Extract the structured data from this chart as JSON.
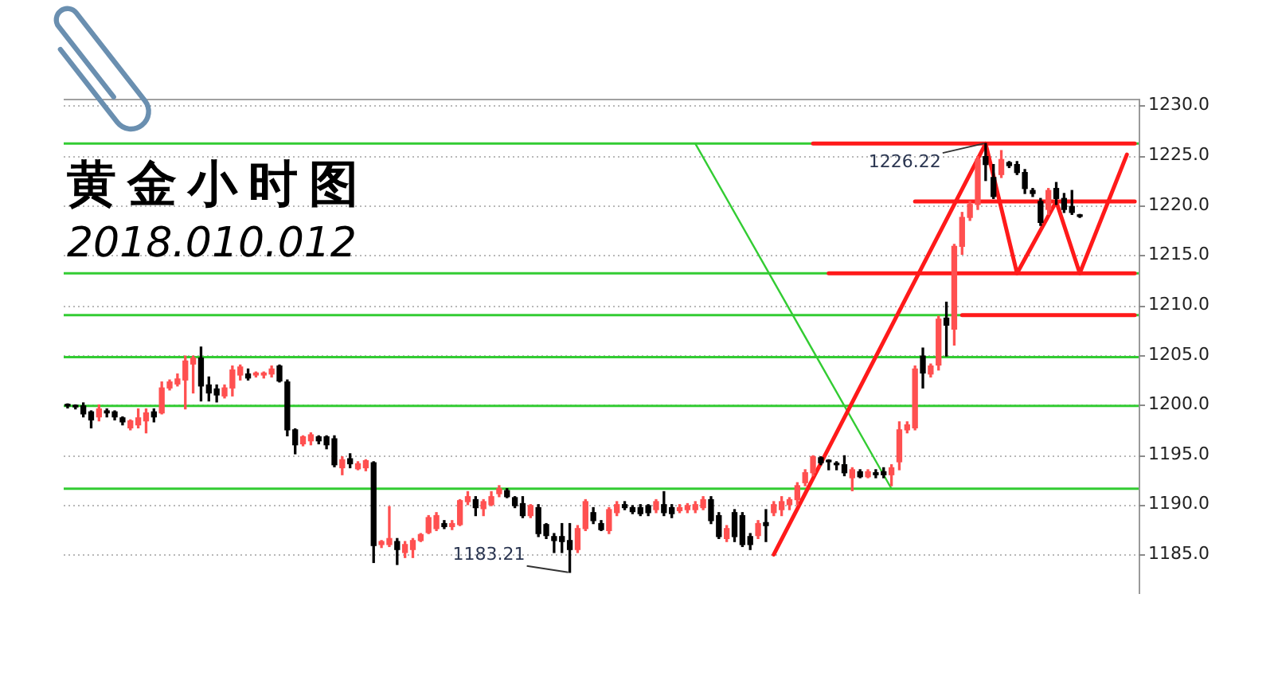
{
  "chart_data": {
    "type": "candlestick",
    "title": "黄金小时图",
    "subtitle": "2018.010.012",
    "categories": [
      null,
      null,
      null,
      null,
      null,
      null,
      null,
      null,
      null,
      null,
      null,
      null,
      null,
      null,
      null,
      null,
      null,
      null,
      null,
      null,
      null,
      null,
      null,
      null,
      null,
      null,
      null,
      null,
      null,
      null,
      null,
      null,
      null,
      null,
      null,
      null,
      null,
      null,
      null,
      null,
      null,
      null,
      null,
      null,
      null,
      null,
      null,
      null,
      null,
      null,
      null,
      null,
      null,
      null,
      null,
      null,
      null,
      null,
      null,
      null,
      null,
      null,
      null,
      null,
      null,
      null,
      null,
      null,
      null,
      null,
      null,
      null,
      null,
      null,
      null,
      null,
      null,
      null,
      null,
      null,
      null,
      null,
      null,
      null,
      null,
      null,
      null,
      null,
      null,
      null,
      null,
      null,
      null,
      null,
      null,
      null,
      null,
      null,
      null,
      null,
      null,
      null,
      null,
      null,
      null,
      null,
      null,
      null,
      null,
      null,
      null,
      null,
      null,
      null,
      null,
      null,
      null,
      null,
      null,
      null,
      null,
      null,
      null,
      null,
      null,
      null,
      null,
      null,
      null,
      null,
      null,
      null,
      null,
      null,
      null,
      null,
      null
    ],
    "ohlc": [
      [
        1200.0,
        1200.1,
        1199.7,
        1199.9
      ],
      [
        1199.9,
        1200.0,
        1199.6,
        1199.8
      ],
      [
        1199.9,
        1200.2,
        1198.8,
        1199.1
      ],
      [
        1199.3,
        1199.4,
        1197.7,
        1198.5
      ],
      [
        1198.8,
        1200.0,
        1198.4,
        1199.6
      ],
      [
        1199.4,
        1199.6,
        1198.8,
        1199.2
      ],
      [
        1199.3,
        1199.4,
        1198.5,
        1198.8
      ],
      [
        1198.7,
        1198.8,
        1198.0,
        1198.3
      ],
      [
        1197.7,
        1198.5,
        1197.5,
        1198.4
      ],
      [
        1198.0,
        1199.6,
        1197.7,
        1198.7
      ],
      [
        1198.4,
        1199.6,
        1197.2,
        1199.2
      ],
      [
        1199.3,
        1199.6,
        1198.3,
        1198.8
      ],
      [
        1199.2,
        1202.3,
        1199.1,
        1201.7
      ],
      [
        1201.7,
        1202.5,
        1201.5,
        1202.3
      ],
      [
        1202.1,
        1203.1,
        1201.9,
        1202.6
      ],
      [
        1202.5,
        1204.9,
        1199.6,
        1204.4
      ],
      [
        1204.1,
        1204.9,
        1201.2,
        1204.7
      ],
      [
        1204.7,
        1205.8,
        1200.4,
        1201.9
      ],
      [
        1202.0,
        1202.8,
        1200.4,
        1201.2
      ],
      [
        1201.6,
        1202.0,
        1200.3,
        1201.0
      ],
      [
        1200.9,
        1202.0,
        1200.7,
        1201.7
      ],
      [
        1201.7,
        1203.9,
        1200.9,
        1203.5
      ],
      [
        1203.0,
        1204.0,
        1202.5,
        1203.8
      ],
      [
        1203.1,
        1203.6,
        1202.5,
        1202.7
      ],
      [
        1203.0,
        1203.3,
        1202.8,
        1203.2
      ],
      [
        1203.0,
        1203.3,
        1202.7,
        1203.2
      ],
      [
        1203.1,
        1203.9,
        1202.8,
        1203.6
      ],
      [
        1203.9,
        1204.0,
        1202.3,
        1202.4
      ],
      [
        1202.3,
        1202.5,
        1196.9,
        1197.5
      ],
      [
        1197.5,
        1197.6,
        1195.1,
        1196.0
      ],
      [
        1196.1,
        1196.9,
        1195.9,
        1196.8
      ],
      [
        1196.4,
        1197.2,
        1196.0,
        1197.0
      ],
      [
        1196.8,
        1196.9,
        1196.1,
        1196.4
      ],
      [
        1196.8,
        1196.9,
        1195.6,
        1196.0
      ],
      [
        1196.6,
        1196.9,
        1193.8,
        1194.0
      ],
      [
        1193.7,
        1194.8,
        1193.0,
        1194.5
      ],
      [
        1194.6,
        1195.1,
        1193.7,
        1194.1
      ],
      [
        1193.6,
        1194.3,
        1193.5,
        1194.1
      ],
      [
        1193.7,
        1194.5,
        1193.4,
        1194.4
      ],
      [
        1194.2,
        1194.3,
        1184.2,
        1185.9
      ],
      [
        1186.0,
        1186.4,
        1185.7,
        1186.3
      ],
      [
        1186.0,
        1189.8,
        1185.8,
        1186.6
      ],
      [
        1186.3,
        1186.6,
        1184.0,
        1185.5
      ],
      [
        1185.2,
        1186.3,
        1184.7,
        1186.0
      ],
      [
        1185.5,
        1186.6,
        1184.7,
        1186.4
      ],
      [
        1186.4,
        1187.1,
        1186.3,
        1187.0
      ],
      [
        1187.2,
        1188.9,
        1187.1,
        1188.7
      ],
      [
        1187.6,
        1189.2,
        1187.4,
        1188.9
      ],
      [
        1188.1,
        1188.4,
        1187.6,
        1187.8
      ],
      [
        1187.8,
        1188.4,
        1187.5,
        1188.1
      ],
      [
        1188.0,
        1190.5,
        1187.9,
        1190.4
      ],
      [
        1190.3,
        1191.3,
        1190.0,
        1190.8
      ],
      [
        1190.5,
        1190.8,
        1188.9,
        1189.7
      ],
      [
        1189.6,
        1190.5,
        1188.9,
        1190.3
      ],
      [
        1190.0,
        1191.3,
        1189.9,
        1190.8
      ],
      [
        1191.1,
        1191.9,
        1190.8,
        1191.6
      ],
      [
        1191.4,
        1191.6,
        1190.7,
        1190.8
      ],
      [
        1190.7,
        1190.8,
        1189.7,
        1189.9
      ],
      [
        1190.1,
        1190.8,
        1188.7,
        1188.9
      ],
      [
        1188.9,
        1190.0,
        1188.7,
        1189.9
      ],
      [
        1189.7,
        1190.0,
        1186.8,
        1187.1
      ],
      [
        1188.0,
        1188.1,
        1186.6,
        1186.9
      ],
      [
        1186.8,
        1187.1,
        1185.2,
        1186.4
      ],
      [
        1186.8,
        1188.1,
        1185.2,
        1186.3
      ],
      [
        1186.4,
        1188.1,
        1183.21,
        1185.5
      ],
      [
        1185.5,
        1187.9,
        1185.2,
        1187.6
      ],
      [
        1187.6,
        1190.5,
        1187.4,
        1190.3
      ],
      [
        1189.2,
        1189.7,
        1188.1,
        1188.4
      ],
      [
        1188.1,
        1188.4,
        1187.4,
        1187.5
      ],
      [
        1187.4,
        1189.7,
        1187.1,
        1189.5
      ],
      [
        1189.2,
        1190.3,
        1188.9,
        1190.0
      ],
      [
        1190.0,
        1190.3,
        1189.5,
        1189.7
      ],
      [
        1189.7,
        1189.9,
        1189.1,
        1189.3
      ],
      [
        1189.7,
        1190.0,
        1188.9,
        1189.1
      ],
      [
        1189.9,
        1190.0,
        1188.9,
        1189.2
      ],
      [
        1189.5,
        1190.5,
        1189.2,
        1190.3
      ],
      [
        1190.0,
        1191.3,
        1188.9,
        1189.2
      ],
      [
        1189.7,
        1190.0,
        1188.7,
        1189.1
      ],
      [
        1189.4,
        1190.0,
        1189.2,
        1189.7
      ],
      [
        1189.5,
        1190.1,
        1189.2,
        1189.9
      ],
      [
        1189.5,
        1190.3,
        1189.2,
        1190.0
      ],
      [
        1189.7,
        1190.8,
        1189.5,
        1190.5
      ],
      [
        1190.5,
        1190.8,
        1188.1,
        1188.4
      ],
      [
        1188.9,
        1189.2,
        1186.6,
        1186.8
      ],
      [
        1186.6,
        1187.9,
        1186.3,
        1187.6
      ],
      [
        1189.2,
        1189.5,
        1186.3,
        1186.8
      ],
      [
        1188.9,
        1189.2,
        1185.8,
        1186.0
      ],
      [
        1186.8,
        1187.1,
        1185.5,
        1186.0
      ],
      [
        1186.9,
        1188.4,
        1186.6,
        1188.1
      ],
      [
        1188.2,
        1189.5,
        1186.3,
        1187.9
      ],
      [
        1189.2,
        1190.3,
        1188.9,
        1190.0
      ],
      [
        1189.5,
        1190.8,
        1188.9,
        1190.3
      ],
      [
        1190.0,
        1190.7,
        1189.5,
        1190.5
      ],
      [
        1190.5,
        1192.2,
        1190.0,
        1191.9
      ],
      [
        1192.2,
        1193.5,
        1191.9,
        1193.2
      ],
      [
        1193.2,
        1194.9,
        1192.9,
        1194.8
      ],
      [
        1194.7,
        1194.8,
        1194.0,
        1194.2
      ],
      [
        1194.4,
        1194.5,
        1193.5,
        1194.3
      ],
      [
        1194.1,
        1194.3,
        1193.5,
        1194.0
      ],
      [
        1194.0,
        1194.9,
        1192.9,
        1193.2
      ],
      [
        1192.7,
        1193.7,
        1191.4,
        1193.5
      ],
      [
        1193.3,
        1193.5,
        1192.7,
        1192.8
      ],
      [
        1192.8,
        1193.5,
        1192.7,
        1193.3
      ],
      [
        1193.2,
        1193.5,
        1192.7,
        1193.0
      ],
      [
        1193.3,
        1193.7,
        1192.7,
        1193.0
      ],
      [
        1193.0,
        1194.0,
        1191.9,
        1193.7
      ],
      [
        1194.3,
        1198.3,
        1193.5,
        1197.5
      ],
      [
        1197.5,
        1198.3,
        1197.2,
        1198.0
      ],
      [
        1197.7,
        1203.9,
        1197.5,
        1203.6
      ],
      [
        1204.9,
        1205.7,
        1201.7,
        1203.2
      ],
      [
        1203.1,
        1204.1,
        1202.8,
        1203.9
      ],
      [
        1204.0,
        1208.9,
        1203.5,
        1208.6
      ],
      [
        1208.7,
        1210.3,
        1204.9,
        1208.0
      ],
      [
        1207.6,
        1216.1,
        1206.0,
        1215.9
      ],
      [
        1215.9,
        1219.3,
        1215.1,
        1218.8
      ],
      [
        1218.8,
        1220.4,
        1218.5,
        1220.1
      ],
      [
        1220.1,
        1224.9,
        1219.6,
        1224.6
      ],
      [
        1224.9,
        1226.22,
        1222.5,
        1224.1
      ],
      [
        1222.8,
        1224.1,
        1220.7,
        1220.9
      ],
      [
        1223.1,
        1225.5,
        1222.8,
        1224.6
      ],
      [
        1224.3,
        1224.4,
        1223.8,
        1224.0
      ],
      [
        1224.1,
        1224.4,
        1223.1,
        1223.3
      ],
      [
        1223.3,
        1223.6,
        1221.2,
        1221.7
      ],
      [
        1221.5,
        1221.7,
        1220.9,
        1221.2
      ],
      [
        1220.4,
        1220.7,
        1218.0,
        1218.3
      ],
      [
        1219.6,
        1221.7,
        1219.1,
        1221.5
      ],
      [
        1221.7,
        1222.3,
        1220.1,
        1220.7
      ],
      [
        1220.7,
        1221.2,
        1219.3,
        1219.6
      ],
      [
        1219.9,
        1221.5,
        1219.1,
        1219.3
      ],
      [
        1219.0,
        1219.1,
        1218.8,
        1218.9
      ],
      null,
      null,
      null,
      null,
      null,
      null,
      null
    ],
    "colors": [
      "#000000",
      "#000000",
      "#000000",
      "#000000",
      "#ff5050",
      "#000000",
      "#000000",
      "#000000",
      "#ff5050",
      "#ff5050",
      "#ff5050",
      "#000000",
      "#ff5050",
      "#ff5050",
      "#ff5050",
      "#ff5050",
      "#ff5050",
      "#000000",
      "#000000",
      "#000000",
      "#ff5050",
      "#ff5050",
      "#ff5050",
      "#000000",
      "#ff5050",
      "#ff5050",
      "#ff5050",
      "#000000",
      "#000000",
      "#000000",
      "#ff5050",
      "#ff5050",
      "#000000",
      "#000000",
      "#000000",
      "#ff5050",
      "#000000",
      "#ff5050",
      "#ff5050",
      "#000000",
      "#ff5050",
      "#ff5050",
      "#000000",
      "#ff5050",
      "#ff5050",
      "#ff5050",
      "#ff5050",
      "#ff5050",
      "#000000",
      "#ff5050",
      "#ff5050",
      "#ff5050",
      "#000000",
      "#ff5050",
      "#ff5050",
      "#ff5050",
      "#000000",
      "#000000",
      "#000000",
      "#ff5050",
      "#000000",
      "#000000",
      "#000000",
      "#000000",
      "#000000",
      "#ff5050",
      "#ff5050",
      "#000000",
      "#000000",
      "#ff5050",
      "#ff5050",
      "#000000",
      "#000000",
      "#000000",
      "#000000",
      "#ff5050",
      "#000000",
      "#000000",
      "#ff5050",
      "#ff5050",
      "#ff5050",
      "#ff5050",
      "#000000",
      "#000000",
      "#ff5050",
      "#000000",
      "#000000",
      "#000000",
      "#ff5050",
      "#000000",
      "#ff5050",
      "#ff5050",
      "#ff5050",
      "#ff5050",
      "#ff5050",
      "#ff5050",
      "#000000",
      "#000000",
      "#000000",
      "#000000",
      "#ff5050",
      "#000000",
      "#ff5050",
      "#000000",
      "#000000",
      "#ff5050",
      "#ff5050",
      "#ff5050",
      "#ff5050",
      "#000000",
      "#ff5050",
      "#ff5050",
      "#000000",
      "#ff5050",
      "#ff5050",
      "#ff5050",
      "#ff5050",
      "#000000",
      "#000000",
      "#ff5050",
      "#000000",
      "#000000",
      "#000000",
      "#000000",
      "#000000",
      "#ff5050",
      "#000000",
      "#000000",
      "#000000",
      "#000000",
      null,
      null,
      null,
      null,
      null,
      null,
      null
    ],
    "series": [
      {
        "type": "line",
        "color": "#ff1a1a",
        "values": [
          null,
          null,
          null,
          null,
          null,
          null,
          null,
          null,
          null,
          null,
          null,
          null,
          null,
          null,
          null,
          null,
          null,
          null,
          null,
          null,
          null,
          null,
          null,
          null,
          null,
          null,
          null,
          null,
          null,
          null,
          null,
          null,
          null,
          null,
          null,
          null,
          null,
          null,
          null,
          null,
          null,
          null,
          null,
          null,
          null,
          null,
          null,
          null,
          null,
          null,
          null,
          null,
          null,
          null,
          null,
          null,
          null,
          null,
          null,
          null,
          null,
          null,
          null,
          null,
          null,
          null,
          null,
          null,
          null,
          null,
          null,
          null,
          null,
          null,
          null,
          null,
          null,
          null,
          null,
          null,
          null,
          null,
          null,
          null,
          null,
          null,
          null,
          null,
          null,
          null,
          1185.0,
          null,
          null,
          null,
          null,
          null,
          null,
          null,
          null,
          null,
          null,
          null,
          null,
          null,
          null,
          null,
          null,
          null,
          null,
          null,
          null,
          null,
          null,
          null,
          null,
          null,
          null,
          1226.2,
          null,
          null,
          null,
          1213.2,
          null,
          null,
          null,
          null,
          1220.4,
          null,
          null,
          1213.2,
          null,
          null,
          null,
          null,
          null,
          1225.1,
          null
        ]
      },
      {
        "type": "line",
        "color": "#ff1a1a",
        "values": [
          null,
          null,
          null,
          null,
          null,
          null,
          null,
          null,
          null,
          null,
          null,
          null,
          null,
          null,
          null,
          null,
          null,
          null,
          null,
          null,
          null,
          null,
          null,
          null,
          null,
          null,
          null,
          null,
          null,
          null,
          null,
          null,
          null,
          null,
          null,
          null,
          null,
          null,
          null,
          null,
          null,
          null,
          null,
          null,
          null,
          null,
          null,
          null,
          null,
          null,
          null,
          null,
          null,
          null,
          null,
          null,
          null,
          null,
          null,
          null,
          null,
          null,
          null,
          null,
          null,
          null,
          null,
          null,
          null,
          null,
          null,
          null,
          null,
          null,
          null,
          null,
          null,
          null,
          null,
          null,
          null,
          null,
          null,
          null,
          null,
          null,
          null,
          null,
          null,
          null,
          null,
          null,
          null,
          null,
          null,
          1226.2,
          null,
          null,
          null,
          null,
          null,
          null,
          null,
          null,
          null,
          null,
          null,
          null,
          null,
          null,
          null,
          null,
          null,
          null,
          null,
          null,
          null,
          null,
          null,
          null,
          null,
          null,
          null,
          null,
          null,
          null,
          null,
          null,
          null,
          null,
          null,
          null,
          null,
          null,
          null,
          null,
          1226.2
        ]
      },
      {
        "type": "line",
        "color": "#ff1a1a",
        "values": [
          null,
          null,
          null,
          null,
          null,
          null,
          null,
          null,
          null,
          null,
          null,
          null,
          null,
          null,
          null,
          null,
          null,
          null,
          null,
          null,
          null,
          null,
          null,
          null,
          null,
          null,
          null,
          null,
          null,
          null,
          null,
          null,
          null,
          null,
          null,
          null,
          null,
          null,
          null,
          null,
          null,
          null,
          null,
          null,
          null,
          null,
          null,
          null,
          null,
          null,
          null,
          null,
          null,
          null,
          null,
          null,
          null,
          null,
          null,
          null,
          null,
          null,
          null,
          null,
          null,
          null,
          null,
          null,
          null,
          null,
          null,
          null,
          null,
          null,
          null,
          null,
          null,
          null,
          null,
          null,
          null,
          null,
          null,
          null,
          null,
          null,
          null,
          null,
          null,
          null,
          null,
          null,
          null,
          null,
          null,
          null,
          null,
          null,
          null,
          null,
          null,
          null,
          null,
          null,
          null,
          null,
          null,
          null,
          1220.4,
          null,
          null,
          null,
          null,
          null,
          null,
          null,
          null,
          null,
          null,
          null,
          null,
          null,
          null,
          null,
          null,
          null,
          null,
          null,
          null,
          null,
          null,
          null,
          null,
          null,
          null,
          null,
          1220.4
        ]
      },
      {
        "type": "line",
        "color": "#ff1a1a",
        "values": [
          null,
          null,
          null,
          null,
          null,
          null,
          null,
          null,
          null,
          null,
          null,
          null,
          null,
          null,
          null,
          null,
          null,
          null,
          null,
          null,
          null,
          null,
          null,
          null,
          null,
          null,
          null,
          null,
          null,
          null,
          null,
          null,
          null,
          null,
          null,
          null,
          null,
          null,
          null,
          null,
          null,
          null,
          null,
          null,
          null,
          null,
          null,
          null,
          null,
          null,
          null,
          null,
          null,
          null,
          null,
          null,
          null,
          null,
          null,
          null,
          null,
          null,
          null,
          null,
          null,
          null,
          null,
          null,
          null,
          null,
          null,
          null,
          null,
          null,
          null,
          null,
          null,
          null,
          null,
          null,
          null,
          null,
          null,
          null,
          null,
          null,
          null,
          null,
          null,
          null,
          null,
          null,
          null,
          null,
          null,
          null,
          null,
          1213.2,
          null,
          null,
          null,
          null,
          null,
          null,
          null,
          null,
          null,
          null,
          null,
          null,
          null,
          null,
          null,
          null,
          null,
          null,
          null,
          null,
          null,
          null,
          null,
          null,
          null,
          null,
          null,
          null,
          null,
          null,
          null,
          null,
          null,
          null,
          null,
          null,
          null,
          null,
          1213.2
        ]
      },
      {
        "type": "line",
        "color": "#ff1a1a",
        "values": [
          null,
          null,
          null,
          null,
          null,
          null,
          null,
          null,
          null,
          null,
          null,
          null,
          null,
          null,
          null,
          null,
          null,
          null,
          null,
          null,
          null,
          null,
          null,
          null,
          null,
          null,
          null,
          null,
          null,
          null,
          null,
          null,
          null,
          null,
          null,
          null,
          null,
          null,
          null,
          null,
          null,
          null,
          null,
          null,
          null,
          null,
          null,
          null,
          null,
          null,
          null,
          null,
          null,
          null,
          null,
          null,
          null,
          null,
          null,
          null,
          null,
          null,
          null,
          null,
          null,
          null,
          null,
          null,
          null,
          null,
          null,
          null,
          null,
          null,
          null,
          null,
          null,
          null,
          null,
          null,
          null,
          null,
          null,
          null,
          null,
          null,
          null,
          null,
          null,
          null,
          null,
          null,
          null,
          null,
          null,
          null,
          null,
          null,
          null,
          null,
          null,
          null,
          null,
          null,
          null,
          null,
          null,
          null,
          null,
          null,
          null,
          null,
          null,
          null,
          1209.0,
          null,
          null,
          null,
          null,
          null,
          null,
          null,
          null,
          null,
          null,
          null,
          null,
          null,
          null,
          null,
          null,
          null,
          null,
          null,
          null,
          null,
          1209.0
        ]
      },
      {
        "type": "line",
        "color": "#33cc33",
        "values": [
          null,
          null,
          null,
          null,
          null,
          null,
          null,
          null,
          null,
          null,
          null,
          null,
          null,
          null,
          null,
          null,
          null,
          null,
          null,
          null,
          null,
          null,
          null,
          null,
          null,
          null,
          null,
          null,
          null,
          null,
          null,
          null,
          null,
          null,
          null,
          null,
          null,
          null,
          null,
          null,
          null,
          null,
          null,
          null,
          null,
          null,
          null,
          null,
          null,
          null,
          null,
          null,
          null,
          null,
          null,
          null,
          null,
          null,
          null,
          null,
          null,
          null,
          null,
          null,
          null,
          null,
          null,
          null,
          null,
          null,
          null,
          null,
          null,
          null,
          null,
          null,
          null,
          null,
          null,
          null,
          1226.2,
          null,
          null,
          null,
          null,
          null,
          null,
          null,
          null,
          null,
          null,
          null,
          null,
          null,
          null,
          null,
          null,
          null,
          null,
          null,
          null,
          null,
          null,
          null,
          null,
          1191.6,
          null,
          null,
          null,
          null,
          null,
          null,
          null,
          null,
          null,
          null,
          null,
          null,
          null,
          null,
          null,
          null,
          null,
          null,
          null,
          null,
          null,
          null,
          null,
          null,
          null,
          null,
          null,
          null,
          null,
          null,
          null
        ]
      }
    ],
    "ref_lines": [
      {
        "axis": "y",
        "value": 1226.2,
        "color": "#33cc33"
      },
      {
        "axis": "y",
        "value": 1213.2,
        "color": "#33cc33"
      },
      {
        "axis": "y",
        "value": 1209.0,
        "color": "#33cc33"
      },
      {
        "axis": "y",
        "value": 1204.8,
        "color": "#33cc33"
      },
      {
        "axis": "y",
        "value": 1199.9,
        "color": "#33cc33"
      },
      {
        "axis": "y",
        "value": 1191.6,
        "color": "#33cc33"
      }
    ],
    "annotations": [
      {
        "text": "1226.22",
        "y": 1226.22
      },
      "1183.21"
    ],
    "ylim": [
      1181.2,
      1230.7
    ],
    "yticks": [
      {
        "value": 1185,
        "label": "1185.0"
      },
      {
        "value": 1190,
        "label": "1190.0"
      },
      {
        "value": 1195,
        "label": "1195.0"
      },
      {
        "value": 1200,
        "label": "1200.0"
      },
      {
        "value": 1205,
        "label": "1205.0"
      },
      {
        "value": 1210,
        "label": "1210.0"
      },
      {
        "value": 1215,
        "label": "1215.0"
      },
      {
        "value": 1220,
        "label": "1220.0"
      },
      {
        "value": 1225,
        "label": "1225.0"
      },
      {
        "value": 1230,
        "label": "1230.0"
      }
    ],
    "grid": "y",
    "tick_labels": "y"
  }
}
